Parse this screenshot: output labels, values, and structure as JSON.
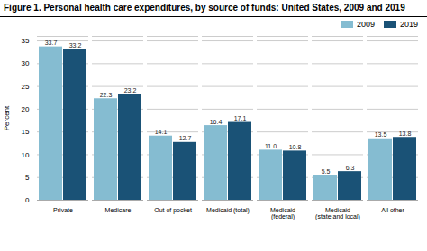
{
  "chart_data": {
    "type": "bar",
    "title": "Figure 1. Personal health care expenditures, by source of funds: United States, 2009 and 2019",
    "ylabel": "Percent",
    "categories": [
      "Private",
      "Medicare",
      "Out of pocket",
      "Medicaid (total)",
      "Medicaid\n(federal)",
      "Medicaid\n(state and local)",
      "All other"
    ],
    "series": [
      {
        "name": "2009",
        "color": "#85bcd1",
        "values": [
          33.7,
          22.3,
          14.1,
          16.4,
          11.0,
          5.5,
          13.5
        ],
        "value_labels": [
          "33.7",
          "22.3",
          "14.1",
          "16.4",
          "11.0",
          "5.5",
          "13.5"
        ]
      },
      {
        "name": "2019",
        "color": "#1a5276",
        "values": [
          33.2,
          23.2,
          12.7,
          17.1,
          10.8,
          6.3,
          13.8
        ],
        "value_labels": [
          "33.2",
          "23.2",
          "12.7",
          "17.1",
          "10.8",
          "6.3",
          "13.8"
        ]
      }
    ],
    "ylim": [
      0,
      36
    ],
    "yticks": [
      0,
      5,
      10,
      15,
      20,
      25,
      30,
      35
    ],
    "grid": true,
    "legend": "upper right",
    "data_labels": true
  }
}
